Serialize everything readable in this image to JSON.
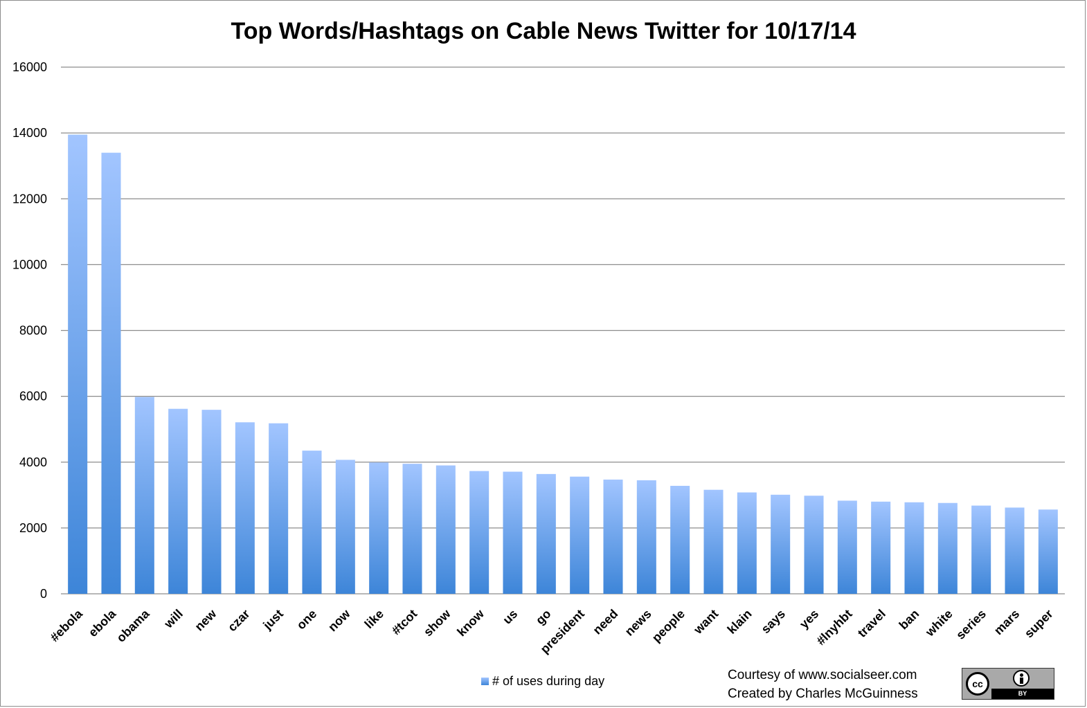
{
  "chart_data": {
    "type": "bar",
    "title": "Top Words/Hashtags on Cable News Twitter for 10/17/14",
    "categories": [
      "#ebola",
      "ebola",
      "obama",
      "will",
      "new",
      "czar",
      "just",
      "one",
      "now",
      "like",
      "#tcot",
      "show",
      "know",
      "us",
      "go",
      "president",
      "need",
      "news",
      "people",
      "want",
      "klain",
      "says",
      "yes",
      "#lnyhbt",
      "travel",
      "ban",
      "white",
      "series",
      "mars",
      "super"
    ],
    "series": [
      {
        "name": "# of uses during day",
        "values": [
          13950,
          13400,
          5980,
          5620,
          5590,
          5210,
          5180,
          4350,
          4070,
          3990,
          3950,
          3900,
          3730,
          3710,
          3640,
          3560,
          3470,
          3450,
          3280,
          3160,
          3080,
          3010,
          2980,
          2830,
          2800,
          2780,
          2760,
          2680,
          2620,
          2560
        ]
      }
    ],
    "yticks": [
      0,
      2000,
      4000,
      6000,
      8000,
      10000,
      12000,
      14000,
      16000
    ],
    "ylim": [
      0,
      16000
    ],
    "grid": true,
    "legend": "bottom-center",
    "colors": {
      "bar_top": "#a2c5ff",
      "bar_bottom": "#3d85d8",
      "grid": "#8c8c8c"
    }
  },
  "credits": {
    "line1": "Courtesy of www.socialseer.com",
    "line2": "Created by Charles McGuinness"
  },
  "license": {
    "cc": "cc",
    "by": "BY",
    "icon": "creative-commons-by-icon"
  }
}
